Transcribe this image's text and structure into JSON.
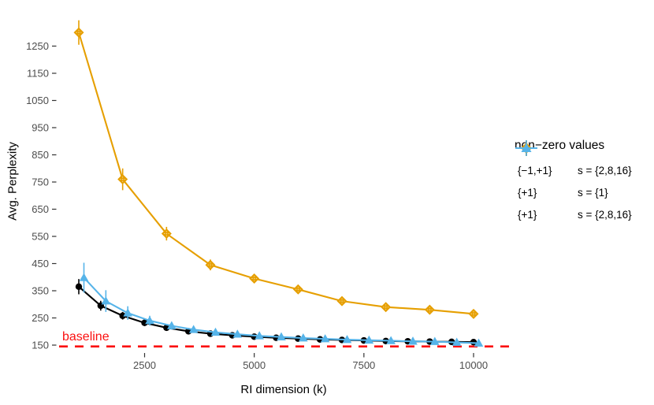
{
  "figure": {
    "y_axis_title": "Avg. Perplexity",
    "x_axis_title": "RI dimension (k)"
  },
  "chart_data": {
    "type": "line",
    "title": "",
    "xlabel": "RI dimension (k)",
    "ylabel": "Avg. Perplexity",
    "x_ticks": [
      2500,
      5000,
      7500,
      10000
    ],
    "y_ticks": [
      150,
      250,
      350,
      450,
      550,
      650,
      750,
      850,
      950,
      1050,
      1150,
      1250
    ],
    "xlim": [
      600,
      10400
    ],
    "ylim": [
      130,
      1370
    ],
    "grid": false,
    "legend_position": "right",
    "legend_title": "non−zero values",
    "baseline": {
      "value": 145,
      "label": "baseline",
      "color": "#fb0f0f",
      "style": "dashed"
    },
    "series": [
      {
        "name": "{−1,+1} s = {2,8,16}",
        "label_values": "{−1,+1}",
        "label_s": "s = {2,8,16}",
        "color": "#000000",
        "marker": "circle",
        "x": [
          1000,
          1500,
          2000,
          2500,
          3000,
          3500,
          4000,
          4500,
          5000,
          5500,
          6000,
          6500,
          7000,
          7500,
          8000,
          8500,
          9000,
          9500,
          10000
        ],
        "y": [
          365,
          295,
          258,
          232,
          214,
          201,
          192,
          186,
          181,
          177,
          174,
          171,
          169,
          167,
          165,
          164,
          163,
          162,
          161
        ],
        "err": [
          28,
          18,
          14,
          12,
          10,
          9,
          8,
          8,
          7,
          7,
          6,
          6,
          6,
          5,
          5,
          5,
          5,
          4,
          4
        ]
      },
      {
        "name": "{+1} s = {1}",
        "label_values": "{+1}",
        "label_s": "s = {1}",
        "color": "#E69F00",
        "marker": "diamond",
        "x": [
          1000,
          2000,
          3000,
          4000,
          5000,
          6000,
          7000,
          8000,
          9000,
          10000
        ],
        "y": [
          1300,
          760,
          560,
          445,
          395,
          355,
          312,
          290,
          280,
          265
        ],
        "err": [
          45,
          40,
          25,
          20,
          15,
          12,
          12,
          10,
          10,
          10
        ]
      },
      {
        "name": "{+1} s = {2,8,16}",
        "label_values": "{+1}",
        "label_s": "s = {2,8,16}",
        "color": "#56B4E9",
        "marker": "triangle",
        "x": [
          1000,
          1500,
          2000,
          2500,
          3000,
          3500,
          4000,
          4500,
          5000,
          5500,
          6000,
          6500,
          7000,
          7500,
          8000,
          8500,
          9000,
          9500,
          10000
        ],
        "y": [
          398,
          312,
          268,
          240,
          221,
          207,
          197,
          190,
          184,
          180,
          176,
          173,
          170,
          168,
          166,
          164,
          163,
          160,
          157
        ],
        "err": [
          55,
          40,
          25,
          18,
          14,
          12,
          10,
          9,
          8,
          8,
          7,
          7,
          6,
          6,
          6,
          5,
          5,
          5,
          5
        ]
      }
    ]
  }
}
